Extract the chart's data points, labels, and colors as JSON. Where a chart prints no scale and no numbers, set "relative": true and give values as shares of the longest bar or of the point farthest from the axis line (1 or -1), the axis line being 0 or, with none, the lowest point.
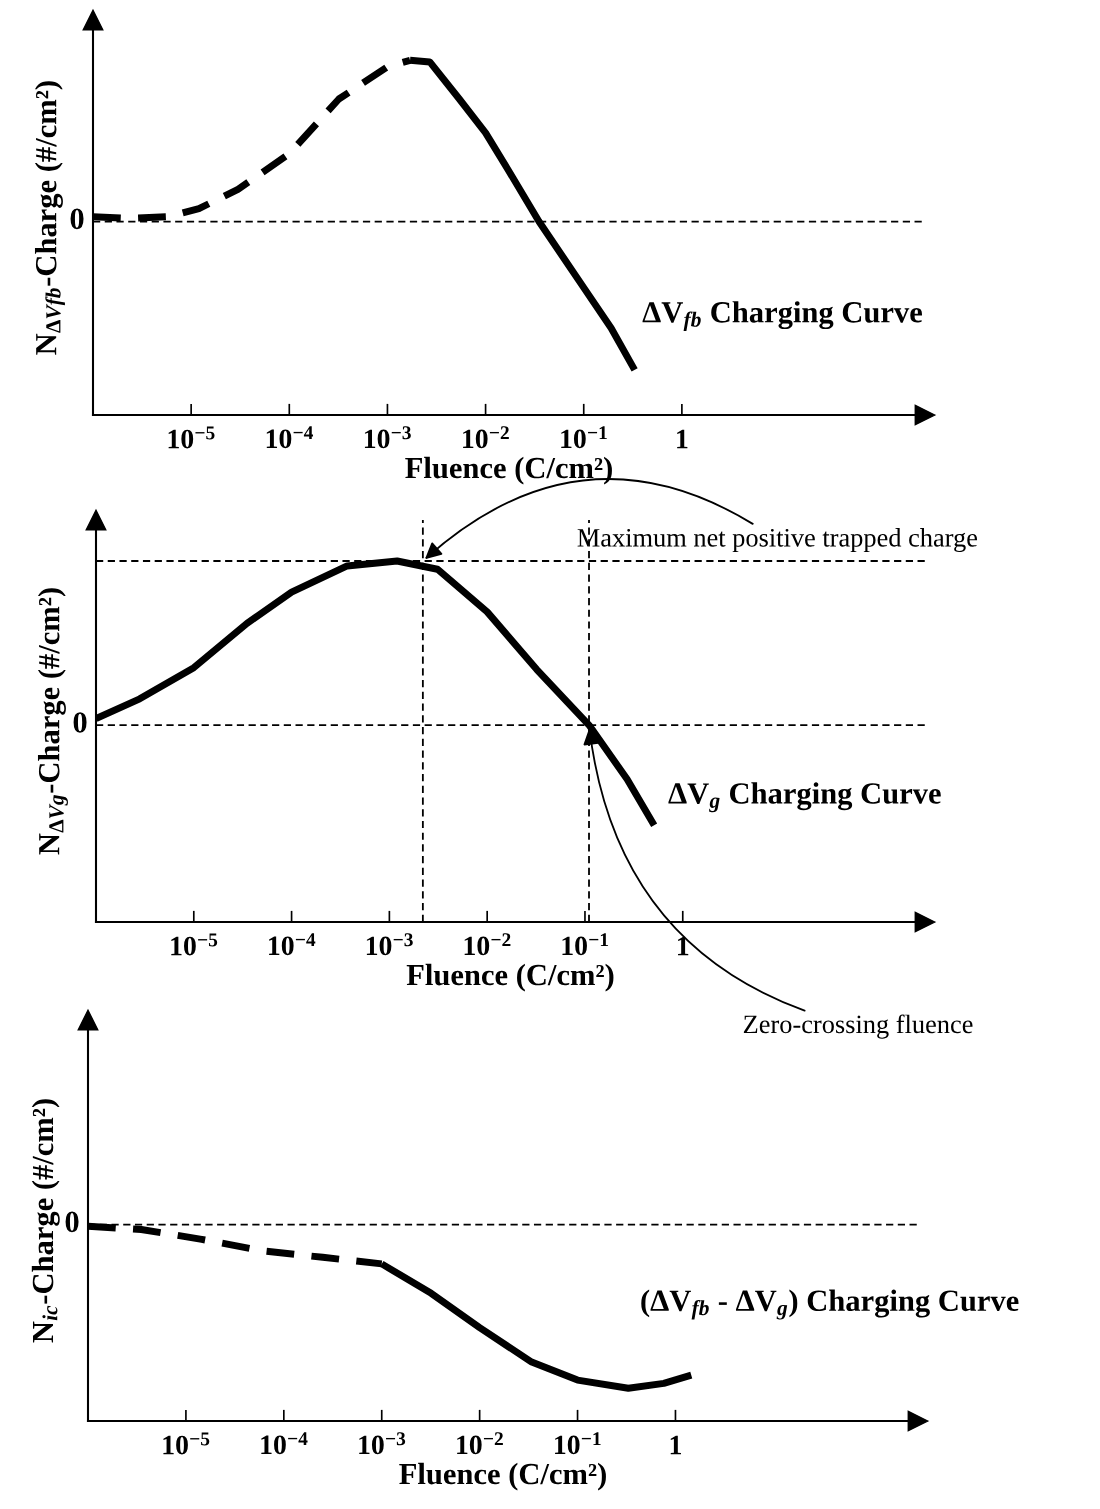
{
  "chart_data": [
    {
      "type": "line",
      "relative": true,
      "xlabel": "Fluence (C/cm²)",
      "ylabel": "N$_{ΔVfb}$-Charge (#/cm²)",
      "log": "x",
      "xlim": [
        1e-06,
        300
      ],
      "xticks": [
        {
          "value": 1e-05,
          "label": "10$^{−5}$"
        },
        {
          "value": 0.0001,
          "label": "10$^{−4}$"
        },
        {
          "value": 0.001,
          "label": "10$^{−3}$"
        },
        {
          "value": 0.01,
          "label": "10$^{−2}$"
        },
        {
          "value": 0.1,
          "label": "10$^{−1}$"
        },
        1
      ],
      "series": [
        {
          "color": "#000000",
          "line_style": "dashed",
          "x": [
            1e-06,
            2.3e-06,
            5.9e-06,
            1.2e-05,
            3e-05,
            0.0001,
            0.00032,
            0.001,
            0.0017
          ],
          "values": [
            0.03,
            0.02,
            0.03,
            0.08,
            0.2,
            0.42,
            0.76,
            0.96,
            1.0
          ]
        },
        {
          "color": "#000000",
          "line_style": "solid",
          "x": [
            0.0017,
            0.0027,
            0.0054,
            0.01,
            0.017,
            0.035,
            0.1,
            0.19,
            0.33
          ],
          "values": [
            1.0,
            0.99,
            0.76,
            0.55,
            0.32,
            0,
            -0.41,
            -0.66,
            -0.92
          ]
        }
      ],
      "ref_lines": [
        {
          "axis": "y",
          "value": 0,
          "label": "0",
          "line_style": "dashed"
        }
      ],
      "annotations": [
        "ΔV$_{fb}$ Charging Curve"
      ]
    },
    {
      "type": "line",
      "relative": true,
      "xlabel": "Fluence (C/cm²)",
      "ylabel": "N$_{ΔVg}$-Charge (#/cm²)",
      "log": "x",
      "xlim": [
        1e-06,
        300
      ],
      "xticks": [
        {
          "value": 1e-05,
          "label": "10$^{−5}$"
        },
        {
          "value": 0.0001,
          "label": "10$^{−4}$"
        },
        {
          "value": 0.001,
          "label": "10$^{−3}$"
        },
        {
          "value": 0.01,
          "label": "10$^{−2}$"
        },
        {
          "value": 0.1,
          "label": "10$^{−1}$"
        },
        1
      ],
      "series": [
        {
          "color": "#000000",
          "line_style": "solid",
          "x": [
            1e-06,
            2.8e-06,
            1e-05,
            3.5e-05,
            0.0001,
            0.00037,
            0.0012,
            0.0031,
            0.01,
            0.032,
            0.11,
            0.27,
            0.51
          ],
          "values": [
            0.04,
            0.16,
            0.35,
            0.62,
            0.81,
            0.97,
            1.0,
            0.95,
            0.69,
            0.34,
            0,
            -0.33,
            -0.61
          ]
        }
      ],
      "ref_lines": [
        {
          "axis": "y",
          "value": 0,
          "label": "0",
          "line_style": "dashed"
        },
        {
          "axis": "y",
          "value": 1,
          "line_style": "dashed"
        },
        {
          "axis": "x",
          "value": 0.0022,
          "line_style": "dashed"
        },
        {
          "axis": "x",
          "value": 0.11,
          "line_style": "dashed"
        }
      ],
      "annotations": [
        "ΔV$_{g}$ Charging Curve",
        {
          "text": "Maximum net positive trapped charge",
          "x": 0.0022,
          "y": 1.0
        },
        {
          "text": "Zero-crossing fluence",
          "x": 0.11,
          "y": 0
        }
      ]
    },
    {
      "type": "line",
      "relative": true,
      "xlabel": "Fluence (C/cm²)",
      "ylabel": "N$_{ic}$-Charge (#/cm²)",
      "log": "x",
      "xlim": [
        1e-06,
        300
      ],
      "xticks": [
        {
          "value": 1e-05,
          "label": "10$^{−5}$"
        },
        {
          "value": 0.0001,
          "label": "10$^{−4}$"
        },
        {
          "value": 0.001,
          "label": "10$^{−3}$"
        },
        {
          "value": 0.01,
          "label": "10$^{−2}$"
        },
        {
          "value": 0.1,
          "label": "10$^{−1}$"
        },
        1
      ],
      "series": [
        {
          "color": "#000000",
          "line_style": "dashed",
          "x": [
            1e-06,
            3.5e-06,
            1.45e-05,
            6e-05,
            0.00025,
            0.001
          ],
          "values": [
            -0.01,
            -0.03,
            -0.09,
            -0.16,
            -0.2,
            -0.24
          ]
        },
        {
          "color": "#000000",
          "line_style": "solid",
          "x": [
            0.001,
            0.0032,
            0.01,
            0.034,
            0.1,
            0.33,
            0.76,
            1.45
          ],
          "values": [
            -0.24,
            -0.42,
            -0.63,
            -0.84,
            -0.95,
            -1.0,
            -0.97,
            -0.92
          ]
        }
      ],
      "ref_lines": [
        {
          "axis": "y",
          "value": 0,
          "label": "0",
          "line_style": "dashed"
        }
      ],
      "annotations": [
        "(ΔV$_{fb}$ - ΔV$_{g}$) Charging Curve"
      ]
    }
  ]
}
